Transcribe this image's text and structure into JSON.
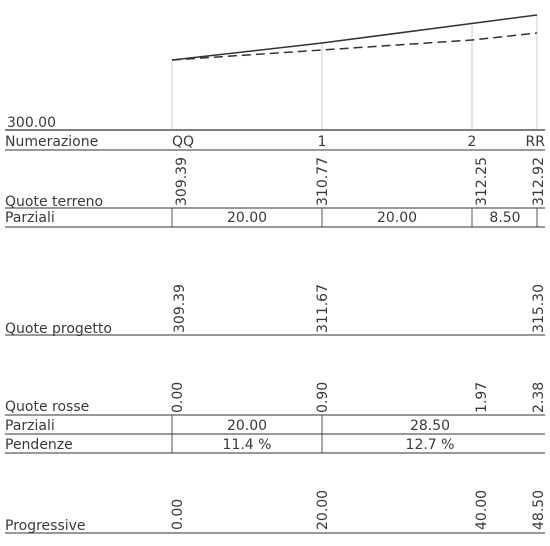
{
  "datum": {
    "label": "300.00",
    "value": 300.0
  },
  "stations": [
    {
      "name": "QQ",
      "terrain": 309.39,
      "design": 309.39,
      "red": 0.0,
      "progressive": 0.0
    },
    {
      "name": "1",
      "terrain": 310.77,
      "design": 311.67,
      "red": 0.9,
      "progressive": 20.0
    },
    {
      "name": "2",
      "terrain": 312.25,
      "design": null,
      "red": 1.97,
      "progressive": 40.0
    },
    {
      "name": "RR",
      "terrain": 312.92,
      "design": 315.3,
      "red": 2.38,
      "progressive": 48.5
    }
  ],
  "rows": {
    "numerazione": "Numerazione",
    "quote_terreno": "Quote terreno",
    "parziali": "Parziali",
    "quote_progetto": "Quote progetto",
    "quote_rosse": "Quote rosse",
    "pendenze": "Pendenze",
    "progressive": "Progressive"
  },
  "labels": {
    "terrain": [
      "309.39",
      "310.77",
      "312.25",
      "312.92"
    ],
    "design": [
      "309.39",
      "311.67",
      "",
      "315.30"
    ],
    "red": [
      "0.00",
      "0.90",
      "1.97",
      "2.38"
    ],
    "progressive": [
      "0.00",
      "20.00",
      "40.00",
      "48.50"
    ],
    "terrain_partials": [
      "20.00",
      "20.00",
      "8.50"
    ],
    "design_partials": [
      "20.00",
      "28.50"
    ],
    "slopes": [
      "11.4 %",
      "12.7 %"
    ]
  },
  "colors": {
    "line": "#333333",
    "grid": "#cccccc",
    "text": "#3a3a3a"
  }
}
